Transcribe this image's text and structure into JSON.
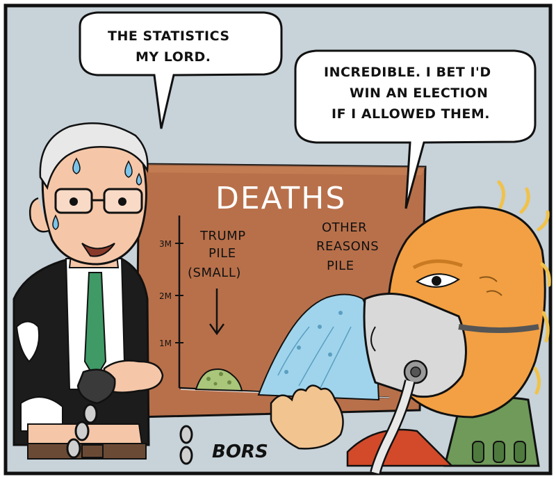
{
  "colors": {
    "sky": "#c7d2d9",
    "board": "#b8704a",
    "board_dark": "#8a4d2c",
    "trump_skin": "#f2a043",
    "trump_hair": "#f0c24a",
    "fauci_skin": "#f5c7a8",
    "tie": "#3f9a66",
    "blue_pile": "#9fd4ec",
    "green_pile": "#a9c67a",
    "mask": "#d9d9d9",
    "chair": "#6f9a5a",
    "shirt_red": "#d24a2a"
  },
  "bubble_left": {
    "lines": [
      "THE STATISTICS",
      "MY LORD."
    ]
  },
  "bubble_right": {
    "lines": [
      "INCREDIBLE. I BET I'D",
      "WIN AN ELECTION",
      "IF I ALLOWED THEM."
    ]
  },
  "chart_data": {
    "type": "bar",
    "title": "DEATHS",
    "ticks": [
      "3M",
      "2M",
      "1M"
    ],
    "piles": [
      {
        "lines": [
          "TRUMP",
          "PILE",
          "(SMALL)"
        ]
      },
      {
        "lines": [
          "OTHER",
          "REASONS",
          "PILE"
        ]
      }
    ]
  },
  "signature": "BORS"
}
